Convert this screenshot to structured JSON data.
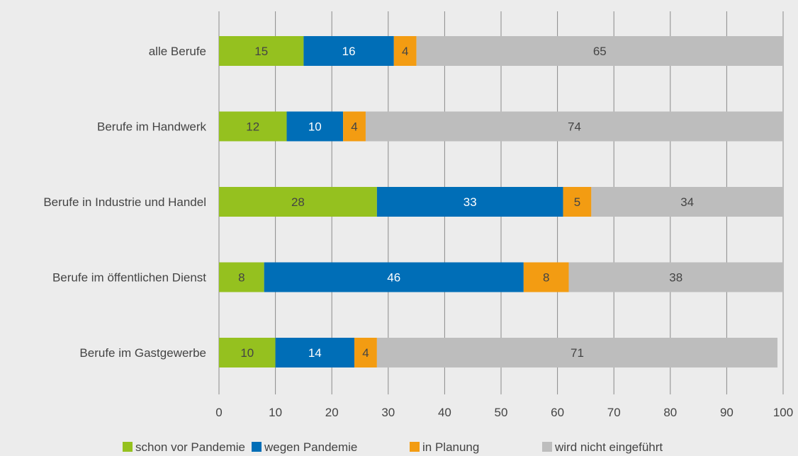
{
  "chart_data": {
    "type": "bar",
    "orientation": "horizontal",
    "stacked": true,
    "categories": [
      "alle Berufe",
      "Berufe im Handwerk",
      "Berufe in Industrie und Handel",
      "Berufe im öffentlichen Dienst",
      "Berufe im Gastgewerbe"
    ],
    "series": [
      {
        "name": "schon vor Pandemie",
        "values": [
          15,
          12,
          28,
          8,
          10
        ],
        "color": "#95c11f",
        "label_color": "#444444"
      },
      {
        "name": "wegen Pandemie",
        "values": [
          16,
          10,
          33,
          46,
          14
        ],
        "color": "#006eb7",
        "label_color": "#ffffff"
      },
      {
        "name": "in Planung",
        "values": [
          4,
          4,
          5,
          8,
          4
        ],
        "color": "#f39c12",
        "label_color": "#444444"
      },
      {
        "name": "wird nicht eingeführt",
        "values": [
          65,
          74,
          34,
          38,
          71
        ],
        "color": "#bdbdbd",
        "label_color": "#444444"
      }
    ],
    "xlim": [
      0,
      100
    ],
    "xticks": [
      0,
      10,
      20,
      30,
      40,
      50,
      60,
      70,
      80,
      90,
      100
    ],
    "grid": "vertical",
    "legend_position": "bottom"
  }
}
